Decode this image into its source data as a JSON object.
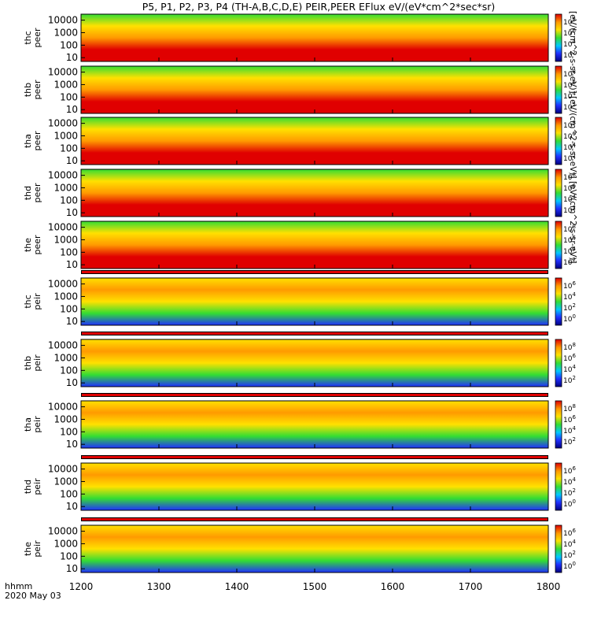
{
  "title": "P5, P1, P2, P3, P4 (TH-A,B,C,D,E) PEIR,PEER EFlux eV/(eV*cm^2*sec*sr)",
  "colorbar_units": "[eV/(cm^2-s-sr-eV)] [eV/(cm^2-s-sr-eV)] [eV/(cm^2-s-sr-eV)]",
  "x_axis": {
    "label_line1": "hhmm",
    "label_line2": "2020 May 03",
    "ticks": [
      "1200",
      "1300",
      "1400",
      "1500",
      "1600",
      "1700",
      "1800"
    ]
  },
  "colors": {
    "red": "#e00000",
    "orange": "#ff9a00",
    "yellow": "#ffe100",
    "green": "#33dd33",
    "cyan": "#00c8ff",
    "blue": "#2030ff",
    "navy": "#000080"
  },
  "chart_data": [
    {
      "type": "heatmap",
      "probe": "thc",
      "species": "peer",
      "ylabel": "thc\npeer",
      "yticks": [
        "10000",
        "1000",
        "100",
        "10"
      ],
      "ylim": [
        5,
        30000
      ],
      "yscale": "log",
      "xlim": [
        1200,
        1800
      ],
      "colorbar_ticks": [
        "10^8",
        "10^6",
        "10^4",
        "10^2"
      ]
    },
    {
      "type": "heatmap",
      "probe": "thb",
      "species": "peer",
      "ylabel": "thb\npeer",
      "yticks": [
        "10000",
        "1000",
        "100",
        "10"
      ],
      "ylim": [
        5,
        30000
      ],
      "yscale": "log",
      "xlim": [
        1200,
        1800
      ],
      "colorbar_ticks": [
        "10^8",
        "10^6",
        "10^4",
        "10^2"
      ]
    },
    {
      "type": "heatmap",
      "probe": "tha",
      "species": "peer",
      "ylabel": "tha\npeer",
      "yticks": [
        "10000",
        "1000",
        "100",
        "10"
      ],
      "ylim": [
        5,
        30000
      ],
      "yscale": "log",
      "xlim": [
        1200,
        1800
      ],
      "colorbar_ticks": [
        "10^8",
        "10^6",
        "10^4",
        "10^2"
      ]
    },
    {
      "type": "heatmap",
      "probe": "thd",
      "species": "peer",
      "ylabel": "thd\npeer",
      "yticks": [
        "10000",
        "1000",
        "100",
        "10"
      ],
      "ylim": [
        5,
        30000
      ],
      "yscale": "log",
      "xlim": [
        1200,
        1800
      ],
      "colorbar_ticks": [
        "10^8",
        "10^6",
        "10^4",
        "10^2"
      ]
    },
    {
      "type": "heatmap",
      "probe": "the",
      "species": "peer",
      "ylabel": "the\npeer",
      "yticks": [
        "10000",
        "1000",
        "100",
        "10"
      ],
      "ylim": [
        5,
        30000
      ],
      "yscale": "log",
      "xlim": [
        1200,
        1800
      ],
      "colorbar_ticks": [
        "10^8",
        "10^6",
        "10^4",
        "10^2"
      ]
    },
    {
      "type": "heatmap",
      "probe": "thc",
      "species": "peir",
      "ylabel": "thc\npeir",
      "yticks": [
        "10000",
        "1000",
        "100",
        "10"
      ],
      "ylim": [
        5,
        30000
      ],
      "yscale": "log",
      "xlim": [
        1200,
        1800
      ],
      "colorbar_ticks": [
        "10^6",
        "10^4",
        "10^2",
        "10^0"
      ]
    },
    {
      "type": "heatmap",
      "probe": "thb",
      "species": "peir",
      "ylabel": "thb\npeir",
      "yticks": [
        "10000",
        "1000",
        "100",
        "10"
      ],
      "ylim": [
        5,
        30000
      ],
      "yscale": "log",
      "xlim": [
        1200,
        1800
      ],
      "colorbar_ticks": [
        "10^8",
        "10^6",
        "10^4",
        "10^2"
      ]
    },
    {
      "type": "heatmap",
      "probe": "tha",
      "species": "peir",
      "ylabel": "tha\npeir",
      "yticks": [
        "10000",
        "1000",
        "100",
        "10"
      ],
      "ylim": [
        5,
        30000
      ],
      "yscale": "log",
      "xlim": [
        1200,
        1800
      ],
      "colorbar_ticks": [
        "10^8",
        "10^6",
        "10^4",
        "10^2"
      ]
    },
    {
      "type": "heatmap",
      "probe": "thd",
      "species": "peir",
      "ylabel": "thd\npeir",
      "yticks": [
        "10000",
        "1000",
        "100",
        "10"
      ],
      "ylim": [
        5,
        30000
      ],
      "yscale": "log",
      "xlim": [
        1200,
        1800
      ],
      "colorbar_ticks": [
        "10^6",
        "10^4",
        "10^2",
        "10^0"
      ]
    },
    {
      "type": "heatmap",
      "probe": "the",
      "species": "peir",
      "ylabel": "the\npeir",
      "yticks": [
        "10000",
        "1000",
        "100",
        "10"
      ],
      "ylim": [
        5,
        30000
      ],
      "yscale": "log",
      "xlim": [
        1200,
        1800
      ],
      "colorbar_ticks": [
        "10^6",
        "10^4",
        "10^2",
        "10^0"
      ]
    }
  ]
}
